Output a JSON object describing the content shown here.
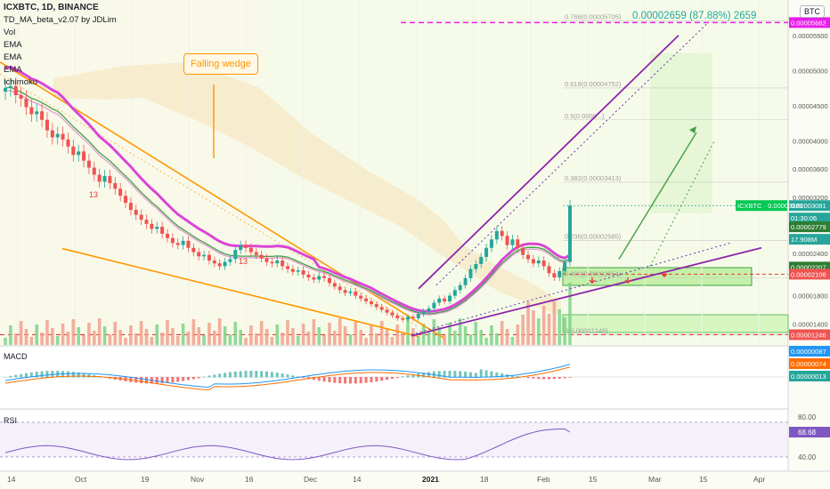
{
  "header": {
    "symbol_line": "ICXBTC, 1D, BINANCE",
    "indicators": [
      "TD_MA_beta_v2.07 by JDLim",
      "Vol",
      "EMA",
      "EMA",
      "EMA",
      "Ichimoku"
    ],
    "currency_badge": "BTC"
  },
  "annotations": {
    "measure": "0.00002659 (87.88%) 2659",
    "falling_wedge": "Falling wedge",
    "td_counts": [
      "13",
      "13"
    ]
  },
  "fib": [
    "0.786(0.00005705)",
    "0.618(0.00004752)",
    "0.5(0.0000...)",
    "0.382(0.00003413)",
    "0.236(0.00002585)",
    "0.000(0.00002054)",
    "0(0.00001246)"
  ],
  "price_axis": {
    "ticks": [
      "0.00005500",
      "0.00005000",
      "0.00004500",
      "0.00004000",
      "0.00003600",
      "0.00003200",
      "0.00002800",
      "0.00002400",
      "0.00001800",
      "0.00001400"
    ],
    "badges": [
      {
        "text": "0.00005682",
        "color": "#e91ee9"
      },
      {
        "text": "0.00003081",
        "color": "#26a69a"
      },
      {
        "text": "01:30:06",
        "color": "#26a69a"
      },
      {
        "text": "0.00002779",
        "color": "#2e7d32"
      },
      {
        "text": "17.908M",
        "color": "#26a69a"
      },
      {
        "text": "0.00002207",
        "color": "#2e7d32"
      },
      {
        "text": "0.00002106",
        "color": "#ef5350"
      },
      {
        "text": "0.00001246",
        "color": "#ef5350"
      }
    ],
    "ticker_label": "ICXBTC · 0.00003081"
  },
  "macd": {
    "label": "MACD",
    "badges": [
      {
        "text": "0.00000087",
        "color": "#2196f3"
      },
      {
        "text": "0.00000074",
        "color": "#ff6d00"
      },
      {
        "text": "0.00000013",
        "color": "#26a69a"
      }
    ]
  },
  "rsi": {
    "label": "RSI",
    "ticks": [
      "80.00",
      "40.00"
    ],
    "value_badge": "68.68"
  },
  "time_axis": {
    "labels": [
      "14",
      "Oct",
      "19",
      "Nov",
      "16",
      "Dec",
      "14",
      "2021",
      "18",
      "Feb",
      "15",
      "Mar",
      "15",
      "Apr"
    ]
  },
  "chart_data": {
    "type": "candlestick",
    "title": "ICXBTC, 1D, BINANCE",
    "ylabel": "BTC",
    "ylim": [
      1.1e-05,
      5.75e-05
    ],
    "price_path": [
      4.75e-05,
      4.78e-05,
      4.65e-05,
      4.6e-05,
      4.48e-05,
      4.38e-05,
      4.42e-05,
      4.3e-05,
      4.15e-05,
      4.05e-05,
      4.1e-05,
      4.02e-05,
      3.92e-05,
      3.8e-05,
      3.85e-05,
      3.72e-05,
      3.62e-05,
      3.52e-05,
      3.42e-05,
      3.5e-05,
      3.4e-05,
      3.32e-05,
      3.22e-05,
      3.12e-05,
      3.02e-05,
      2.95e-05,
      2.88e-05,
      2.82e-05,
      2.75e-05,
      2.78e-05,
      2.68e-05,
      2.62e-05,
      2.55e-05,
      2.52e-05,
      2.58e-05,
      2.48e-05,
      2.42e-05,
      2.36e-05,
      2.38e-05,
      2.3e-05,
      2.26e-05,
      2.22e-05,
      2.28e-05,
      2.32e-05,
      2.45e-05,
      2.52e-05,
      2.48e-05,
      2.42e-05,
      2.38e-05,
      2.33e-05,
      2.28e-05,
      2.26e-05,
      2.3e-05,
      2.22e-05,
      2.18e-05,
      2.14e-05,
      2.16e-05,
      2.1e-05,
      2.06e-05,
      2.03e-05,
      2.08e-05,
      2.05e-05,
      1.98e-05,
      1.93e-05,
      1.88e-05,
      1.84e-05,
      1.86e-05,
      1.8e-05,
      1.76e-05,
      1.72e-05,
      1.68e-05,
      1.64e-05,
      1.6e-05,
      1.56e-05,
      1.52e-05,
      1.48e-05,
      1.46e-05,
      1.5e-05,
      1.48e-05,
      1.54e-05,
      1.58e-05,
      1.62e-05,
      1.7e-05,
      1.76e-05,
      1.72e-05,
      1.8e-05,
      1.88e-05,
      1.95e-05,
      2.05e-05,
      2.18e-05,
      2.25e-05,
      2.35e-05,
      2.48e-05,
      2.6e-05,
      2.72e-05,
      2.65e-05,
      2.52e-05,
      2.6e-05,
      2.48e-05,
      2.38e-05,
      2.32e-05,
      2.26e-05,
      2.3e-05,
      2.22e-05,
      2.12e-05,
      2.06e-05,
      2.15e-05,
      2.28e-05,
      3.08e-05
    ],
    "fib_levels": [
      5.705e-05,
      4.752e-05,
      4.3e-05,
      3.413e-05,
      2.585e-05,
      2.054e-05,
      1.246e-05
    ],
    "target_line": 5.682e-05,
    "last_price": 3.081e-05,
    "macd_values": [
      8.7e-07,
      7.4e-07,
      1.3e-07
    ],
    "rsi_value": 68.68,
    "rsi_levels": [
      80,
      40
    ]
  }
}
